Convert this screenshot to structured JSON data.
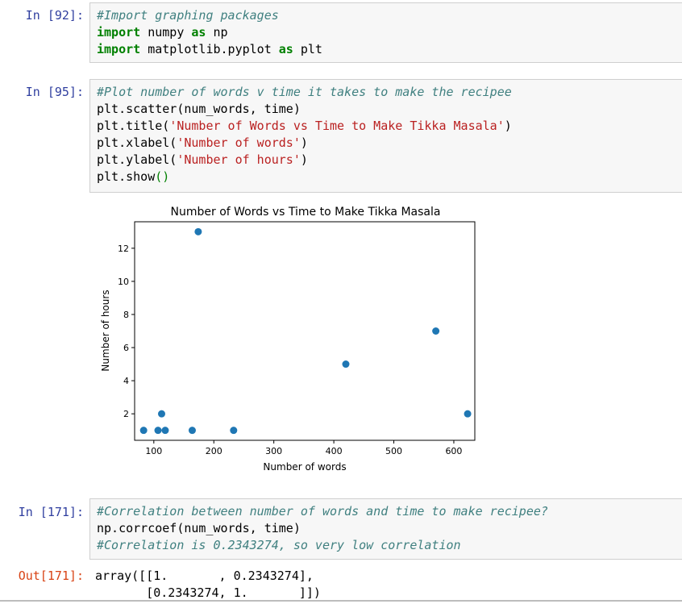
{
  "cells": [
    {
      "prompt": "In [92]:",
      "lines": [
        {
          "tokens": [
            {
              "t": "#Import graphing packages",
              "c": "cm"
            }
          ]
        },
        {
          "tokens": [
            {
              "t": "import",
              "c": "kw"
            },
            {
              "t": " numpy ",
              "c": ""
            },
            {
              "t": "as",
              "c": "kw"
            },
            {
              "t": " np",
              "c": ""
            }
          ]
        },
        {
          "tokens": [
            {
              "t": "import",
              "c": "kw"
            },
            {
              "t": " matplotlib.pyplot ",
              "c": ""
            },
            {
              "t": "as",
              "c": "kw"
            },
            {
              "t": " plt",
              "c": ""
            }
          ]
        }
      ]
    },
    {
      "prompt": "In [95]:",
      "lines": [
        {
          "tokens": [
            {
              "t": "#Plot number of words v time it takes to make the recipee",
              "c": "cm"
            }
          ]
        },
        {
          "tokens": [
            {
              "t": "plt.scatter(num_words, time)",
              "c": ""
            }
          ]
        },
        {
          "tokens": [
            {
              "t": "plt.title(",
              "c": ""
            },
            {
              "t": "'Number of Words vs Time to Make Tikka Masala'",
              "c": "st"
            },
            {
              "t": ")",
              "c": ""
            }
          ]
        },
        {
          "tokens": [
            {
              "t": "plt.xlabel(",
              "c": ""
            },
            {
              "t": "'Number of words'",
              "c": "st"
            },
            {
              "t": ")",
              "c": ""
            }
          ]
        },
        {
          "tokens": [
            {
              "t": "plt.ylabel(",
              "c": ""
            },
            {
              "t": "'Number of hours'",
              "c": "st"
            },
            {
              "t": ")",
              "c": ""
            }
          ]
        },
        {
          "tokens": [
            {
              "t": "plt.show",
              "c": ""
            },
            {
              "t": "()",
              "c": "pa"
            }
          ]
        }
      ]
    },
    {
      "prompt": "In [171]:",
      "lines": [
        {
          "tokens": [
            {
              "t": "#Correlation between number of words and time to make recipee?",
              "c": "cm"
            }
          ]
        },
        {
          "tokens": [
            {
              "t": "np.corrcoef(num_words, time)",
              "c": ""
            }
          ]
        },
        {
          "tokens": [
            {
              "t": "#Correlation is 0.2343274, so very low correlation",
              "c": "cm"
            }
          ]
        }
      ]
    }
  ],
  "output": {
    "prompt": "Out[171]:",
    "lines": [
      "array([[1.       , 0.2343274],",
      "       [0.2343274, 1.       ]])"
    ]
  },
  "colors": {
    "point": "#1f77b4",
    "prompt_in": "#303f9f",
    "prompt_out": "#d84315"
  },
  "chart_data": {
    "type": "scatter",
    "title": "Number of Words vs Time to Make Tikka Masala",
    "xlabel": "Number of words",
    "ylabel": "Number of hours",
    "xlim": [
      68,
      635
    ],
    "ylim": [
      0.4,
      13.6
    ],
    "xticks": [
      100,
      200,
      300,
      400,
      500,
      600
    ],
    "yticks": [
      2,
      4,
      6,
      8,
      10,
      12
    ],
    "grid": false,
    "points": [
      {
        "x": 83,
        "y": 1
      },
      {
        "x": 107,
        "y": 1
      },
      {
        "x": 113,
        "y": 2
      },
      {
        "x": 119,
        "y": 1
      },
      {
        "x": 164,
        "y": 1
      },
      {
        "x": 174,
        "y": 13
      },
      {
        "x": 233,
        "y": 1
      },
      {
        "x": 420,
        "y": 5
      },
      {
        "x": 570,
        "y": 7
      },
      {
        "x": 623,
        "y": 2
      }
    ]
  }
}
